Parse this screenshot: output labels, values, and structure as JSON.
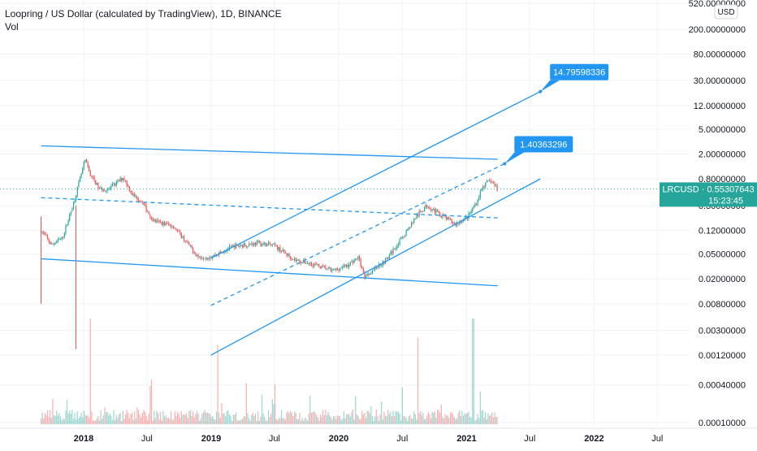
{
  "header": {
    "title": "Loopring / US Dollar (calculated by TradingView), 1D, BINANCE",
    "volume_label": "Vol"
  },
  "price_axis": {
    "currency_button": "USD",
    "ticks": [
      "520.00000000",
      "200.00000000",
      "80.00000000",
      "30.00000000",
      "12.00000000",
      "5.00000000",
      "2.00000000",
      "0.80000000",
      "0.30000000",
      "0.12000000",
      "0.05000000",
      "0.02000000",
      "0.00800000",
      "0.00300000",
      "0.00120000",
      "0.00040000",
      "0.00010000"
    ],
    "current_label": "LRCUSD  ·  0.55307643",
    "countdown": "15:23:45"
  },
  "time_axis": {
    "ticks": [
      "2018",
      "Jul",
      "2019",
      "Jul",
      "2020",
      "Jul",
      "2021",
      "Jul",
      "2022",
      "Jul"
    ]
  },
  "annotations": [
    {
      "text": "14.79598336",
      "color": "#2196f3"
    },
    {
      "text": "1.40363296",
      "color": "#2196f3"
    }
  ],
  "colors": {
    "up": "#26a69a",
    "down": "#ef5350",
    "lines": "#2196f3",
    "price_tag": "#26a69a"
  },
  "chart_data": {
    "type": "candlestick",
    "scale": "log",
    "x_range": [
      "2017-08",
      "2022-11"
    ],
    "y_range": [
      0.0001,
      520
    ],
    "close_series": [
      [
        "2017-09-01",
        0.12
      ],
      [
        "2017-10-01",
        0.07
      ],
      [
        "2017-11-01",
        0.09
      ],
      [
        "2017-12-01",
        0.3
      ],
      [
        "2018-01-05",
        1.6
      ],
      [
        "2018-01-20",
        0.95
      ],
      [
        "2018-02-15",
        0.55
      ],
      [
        "2018-03-15",
        0.55
      ],
      [
        "2018-04-25",
        0.85
      ],
      [
        "2018-05-20",
        0.45
      ],
      [
        "2018-06-15",
        0.35
      ],
      [
        "2018-07-20",
        0.17
      ],
      [
        "2018-09-15",
        0.14
      ],
      [
        "2018-10-20",
        0.08
      ],
      [
        "2018-11-25",
        0.045
      ],
      [
        "2018-12-31",
        0.045
      ],
      [
        "2019-03-01",
        0.065
      ],
      [
        "2019-05-15",
        0.075
      ],
      [
        "2019-06-30",
        0.068
      ],
      [
        "2019-08-30",
        0.04
      ],
      [
        "2019-10-15",
        0.035
      ],
      [
        "2019-12-15",
        0.027
      ],
      [
        "2020-01-31",
        0.034
      ],
      [
        "2020-02-25",
        0.045
      ],
      [
        "2020-03-15",
        0.022
      ],
      [
        "2020-05-15",
        0.04
      ],
      [
        "2020-06-30",
        0.09
      ],
      [
        "2020-08-10",
        0.2
      ],
      [
        "2020-09-10",
        0.3
      ],
      [
        "2020-10-15",
        0.22
      ],
      [
        "2020-11-30",
        0.15
      ],
      [
        "2021-01-05",
        0.2
      ],
      [
        "2021-01-31",
        0.35
      ],
      [
        "2021-02-15",
        0.6
      ],
      [
        "2021-03-10",
        0.75
      ],
      [
        "2021-03-31",
        0.55
      ]
    ],
    "last_price": 0.55307643,
    "volume": {
      "visible": true,
      "peaks": [
        [
          "2018-01-20",
          1
        ],
        [
          "2019-01-20",
          0.75
        ],
        [
          "2020-08-15",
          0.82
        ],
        [
          "2021-01-20",
          1
        ]
      ]
    },
    "trendlines": [
      {
        "style": "solid",
        "points": [
          [
            "2017-09-01",
            2.7
          ],
          [
            "2021-03-31",
            1.65
          ]
        ]
      },
      {
        "style": "solid",
        "points": [
          [
            "2017-09-01",
            0.042
          ],
          [
            "2021-03-31",
            0.0155
          ]
        ]
      },
      {
        "style": "solid",
        "points": [
          [
            "2018-12-31",
            0.043
          ],
          [
            "2021-07-31",
            20
          ]
        ]
      },
      {
        "style": "dashed",
        "points": [
          [
            "2018-12-31",
            0.0075
          ],
          [
            "2021-04-20",
            1.4
          ]
        ]
      },
      {
        "style": "dashed",
        "points": [
          [
            "2017-09-01",
            0.4
          ],
          [
            "2021-03-31",
            0.19
          ]
        ]
      },
      {
        "style": "solid",
        "points": [
          [
            "2018-12-31",
            0.0012
          ],
          [
            "2021-07-31",
            0.8
          ]
        ]
      }
    ],
    "horizontal_line": {
      "value": 0.55307643,
      "style": "dotted"
    }
  }
}
